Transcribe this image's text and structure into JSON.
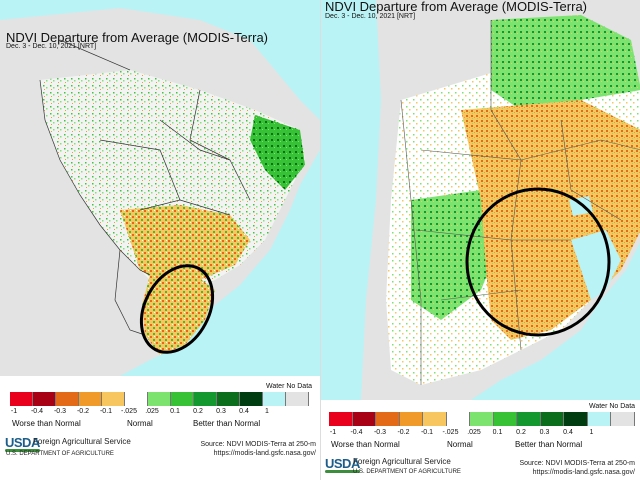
{
  "colors": {
    "ocean": "#b9f3f5",
    "land_no_data": "#e3e3e3",
    "normal": "#ffffff",
    "border": "#333333",
    "highlight_ring": "#000000",
    "scale": [
      "#e8001d",
      "#a80014",
      "#e36b18",
      "#f09a2a",
      "#f7c65e",
      "#ffffff",
      "#7de36f",
      "#36c234",
      "#12982e",
      "#0b6e1d",
      "#003d10",
      "#b9f3f5",
      "#e3e3e3"
    ]
  },
  "left": {
    "title": "NDVI Departure from Average (MODIS-Terra)",
    "subtitle": "Dec. 3 - Dec. 10, 2021 [NRT]",
    "legend": {
      "water_label": "Water No Data",
      "ticks": [
        "-1",
        "-0.4",
        "-0.3",
        "-0.2",
        "-0.1",
        "-.025",
        ".025",
        "0.1",
        "0.2",
        "0.3",
        "0.4",
        "1"
      ],
      "category_worse": "Worse than Normal",
      "category_normal": "Normal",
      "category_better": "Better than Normal"
    },
    "footer": {
      "logo_text": "USDA",
      "agency": "Foreign Agricultural Service",
      "department": "U.S. DEPARTMENT OF AGRICULTURE",
      "source_line1": "Source: NDVI MODIS-Terra at 250-m",
      "source_line2": "https://modis-land.gsfc.nasa.gov/"
    }
  },
  "right": {
    "title": "NDVI Departure from Average (MODIS-Terra)",
    "subtitle": "Dec. 3 - Dec. 10, 2021 [NRT]",
    "legend": {
      "water_label": "Water No Data",
      "ticks": [
        "-1",
        "-0.4",
        "-0.3",
        "-0.2",
        "-0.1",
        "-.025",
        ".025",
        "0.1",
        "0.2",
        "0.3",
        "0.4",
        "1"
      ],
      "category_worse": "Worse than Normal",
      "category_normal": "Normal",
      "category_better": "Better than Normal"
    },
    "footer": {
      "logo_text": "USDA",
      "agency": "Foreign Agricultural Service",
      "department": "U.S. DEPARTMENT OF AGRICULTURE",
      "source_line1": "Source: NDVI MODIS-Terra at 250-m",
      "source_line2": "https://modis-land.gsfc.nasa.gov/"
    }
  }
}
